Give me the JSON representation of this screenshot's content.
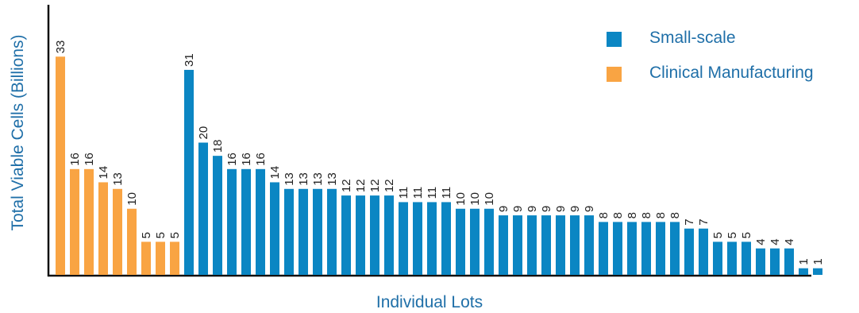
{
  "chart_data": {
    "type": "bar",
    "xlabel": "Individual Lots",
    "ylabel": "Total Viable Cells (Billions)",
    "ylim": [
      0,
      37
    ],
    "grid": false,
    "legend_position": "top-right",
    "series": [
      {
        "name": "Clinical Manufacturing",
        "color": "#f9a443",
        "values": [
          33,
          16,
          16,
          14,
          13,
          10,
          5,
          5,
          5
        ]
      },
      {
        "name": "Small-scale",
        "color": "#0b86c3",
        "values": [
          31,
          20,
          18,
          16,
          16,
          16,
          14,
          13,
          13,
          13,
          13,
          12,
          12,
          12,
          12,
          11,
          11,
          11,
          11,
          10,
          10,
          10,
          9,
          9,
          9,
          9,
          9,
          9,
          9,
          8,
          8,
          8,
          8,
          8,
          8,
          7,
          7,
          5,
          5,
          5,
          4,
          4,
          4,
          1,
          1
        ]
      }
    ],
    "bar_labels": [
      "33",
      "16",
      "16",
      "14",
      "13",
      "10",
      "5",
      "5",
      "5",
      "31",
      "20",
      "18",
      "16",
      "16",
      "16",
      "14",
      "13",
      "13",
      "13",
      "13",
      "12",
      "12",
      "12",
      "12",
      "11",
      "11",
      "11",
      "11",
      "10",
      "10",
      "10",
      "9",
      "9",
      "9",
      "9",
      "9",
      "9",
      "9",
      "8",
      "8",
      "8",
      "8",
      "8",
      "8",
      "7",
      "7",
      "5",
      "5",
      "5",
      "4",
      "4",
      "4",
      "1",
      "1"
    ]
  }
}
